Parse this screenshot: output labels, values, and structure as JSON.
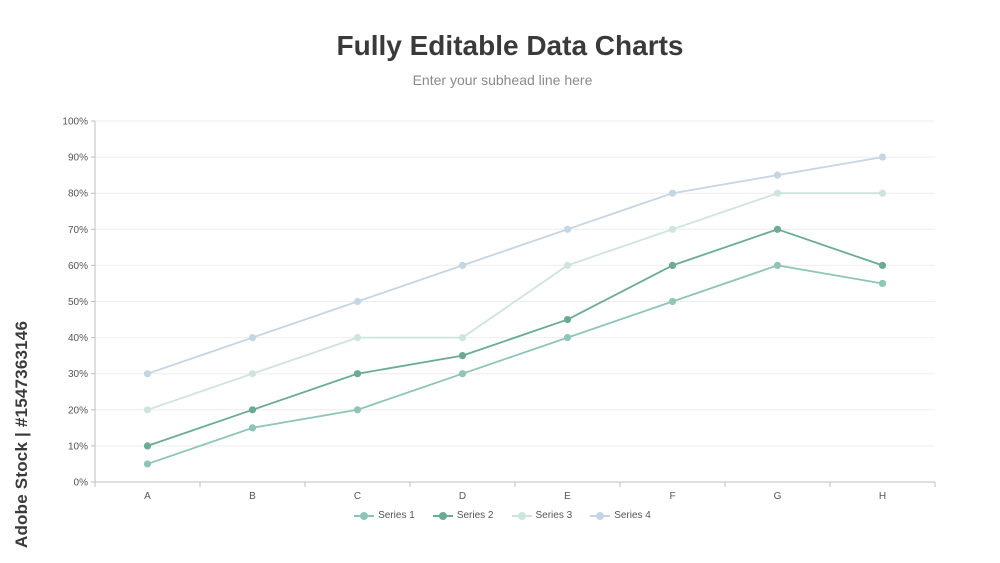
{
  "header": {
    "title": "Fully Editable Data Charts",
    "subtitle": "Enter your subhead line here"
  },
  "watermark": {
    "side_text": "Adobe Stock | #1547363146"
  },
  "chart_data": {
    "type": "line",
    "categories": [
      "A",
      "B",
      "C",
      "D",
      "E",
      "F",
      "G",
      "H"
    ],
    "series": [
      {
        "name": "Series 1",
        "values": [
          5,
          15,
          20,
          30,
          40,
          50,
          60,
          55
        ],
        "color": "#8ec5b9"
      },
      {
        "name": "Series 2",
        "values": [
          10,
          20,
          30,
          35,
          45,
          60,
          70,
          60
        ],
        "color": "#6aab95"
      },
      {
        "name": "Series 3",
        "values": [
          20,
          30,
          40,
          40,
          60,
          70,
          80,
          80
        ],
        "color": "#cde4df"
      },
      {
        "name": "Series 4",
        "values": [
          30,
          40,
          50,
          60,
          70,
          80,
          85,
          90
        ],
        "color": "#c4d5e3"
      }
    ],
    "y_ticks": [
      "0%",
      "10%",
      "20%",
      "30%",
      "40%",
      "50%",
      "60%",
      "70%",
      "80%",
      "90%",
      "100%"
    ],
    "ylim": [
      0,
      100
    ],
    "grid": true,
    "legend_position": "bottom"
  }
}
